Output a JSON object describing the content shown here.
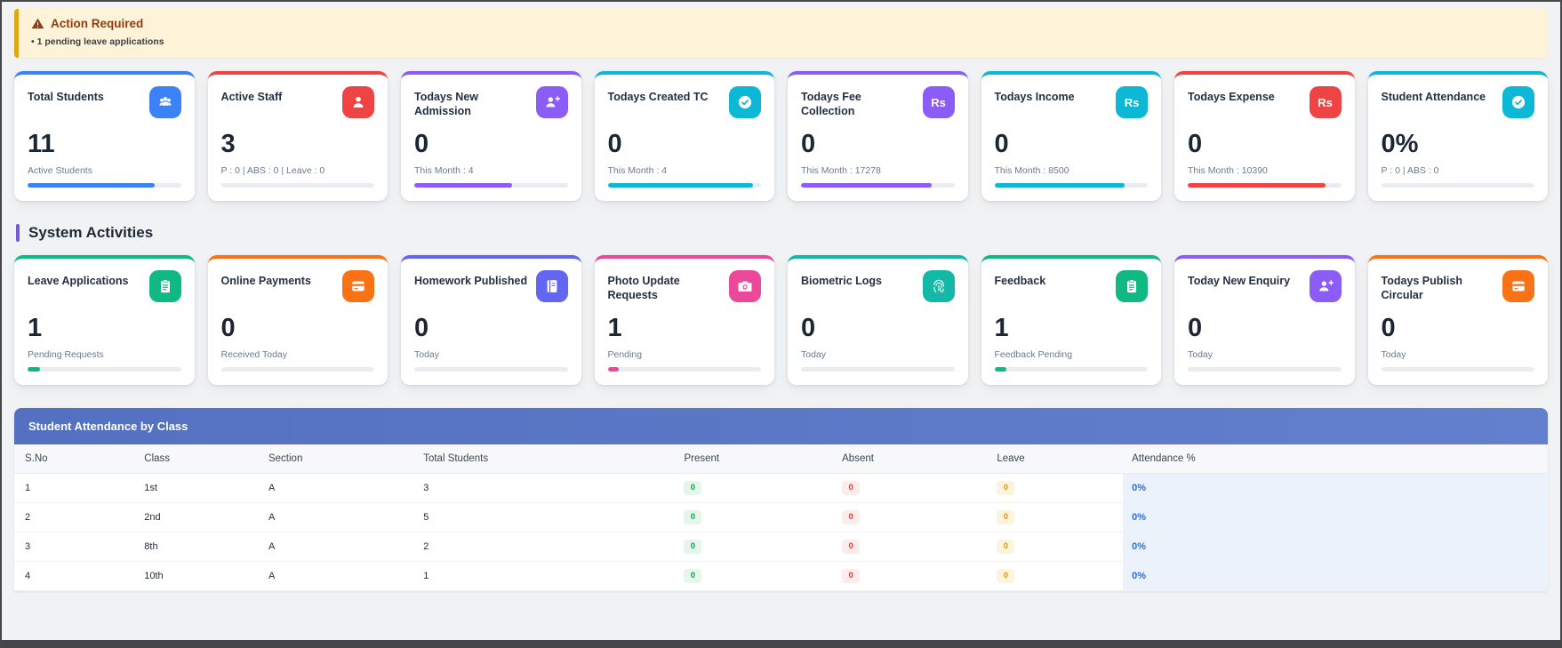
{
  "alert": {
    "title": "Action Required",
    "items": [
      "• 1 pending leave applications"
    ]
  },
  "sections": {
    "system_activities": "System Activities"
  },
  "icons": {
    "rupee_label": "Rs"
  },
  "colors": {
    "alert_bg": "#fcf3d8",
    "alert_border": "#dfa714",
    "alert_title": "#8d3d12",
    "section_bar": "#7857d6",
    "table_header_from": "#5470c1",
    "table_header_to": "#6280cd",
    "attendance_col_bg": "#ecf2fb",
    "attendance_text": "#2e6fd8",
    "present": "#17a34a",
    "absent": "#e23b3b",
    "leave": "#df9a12"
  },
  "stat_cards": [
    {
      "id": "total-students",
      "title": "Total Students",
      "icon": "users-icon",
      "value": "11",
      "subtitle": "Active Students",
      "accent": "#3b82f6",
      "progress": 83
    },
    {
      "id": "active-staff",
      "title": "Active Staff",
      "icon": "user-icon",
      "value": "3",
      "subtitle": "P : 0 | ABS : 0 | Leave : 0",
      "accent": "#ef4444",
      "progress": 0
    },
    {
      "id": "todays-new-admission",
      "title": "Todays New Admission",
      "icon": "user-plus-icon",
      "value": "0",
      "subtitle": "This Month : 4",
      "accent": "#8b5cf6",
      "progress": 64
    },
    {
      "id": "todays-created-tc",
      "title": "Todays Created TC",
      "icon": "check-icon",
      "value": "0",
      "subtitle": "This Month : 4",
      "accent": "#0db8d6",
      "progress": 95
    },
    {
      "id": "todays-fee-collection",
      "title": "Todays Fee Collection",
      "icon": "rupee-icon",
      "value": "0",
      "subtitle": "This Month : 17278",
      "accent": "#8b5cf6",
      "progress": 85
    },
    {
      "id": "todays-income",
      "title": "Todays Income",
      "icon": "rupee-icon",
      "value": "0",
      "subtitle": "This Month : 8500",
      "accent": "#0db8d6",
      "progress": 85
    },
    {
      "id": "todays-expense",
      "title": "Todays Expense",
      "icon": "rupee-icon",
      "value": "0",
      "subtitle": "This Month : 10390",
      "accent": "#ef4444",
      "progress": 90
    },
    {
      "id": "student-attendance",
      "title": "Student Attendance",
      "icon": "check-icon",
      "value": "0%",
      "subtitle": "P : 0 | ABS : 0",
      "accent": "#0db8d6",
      "progress": 0
    }
  ],
  "activity_cards": [
    {
      "id": "leave-applications",
      "title": "Leave Applications",
      "icon": "clipboard-icon",
      "value": "1",
      "subtitle": "Pending Requests",
      "accent": "#10b981",
      "progress": 8
    },
    {
      "id": "online-payments",
      "title": "Online Payments",
      "icon": "credit-card-icon",
      "value": "0",
      "subtitle": "Received Today",
      "accent": "#f97316",
      "progress": 0
    },
    {
      "id": "homework-published",
      "title": "Homework Published",
      "icon": "book-icon",
      "value": "0",
      "subtitle": "Today",
      "accent": "#6366f1",
      "progress": 0
    },
    {
      "id": "photo-update-requests",
      "title": "Photo Update Requests",
      "icon": "camera-icon",
      "value": "1",
      "subtitle": "Pending",
      "accent": "#ec4899",
      "progress": 7
    },
    {
      "id": "biometric-logs",
      "title": "Biometric Logs",
      "icon": "fingerprint-icon",
      "value": "0",
      "subtitle": "Today",
      "accent": "#14b8a6",
      "progress": 0
    },
    {
      "id": "feedback",
      "title": "Feedback",
      "icon": "clipboard-icon",
      "value": "1",
      "subtitle": "Feedback Pending",
      "accent": "#10b981",
      "progress": 8
    },
    {
      "id": "today-new-enquiry",
      "title": "Today New Enquiry",
      "icon": "user-plus-icon",
      "value": "0",
      "subtitle": "Today",
      "accent": "#8b5cf6",
      "progress": 0
    },
    {
      "id": "todays-publish-circular",
      "title": "Todays Publish Circular",
      "icon": "credit-card-icon",
      "value": "0",
      "subtitle": "Today",
      "accent": "#f97316",
      "progress": 0
    }
  ],
  "table": {
    "title": "Student Attendance by Class",
    "columns": [
      "S.No",
      "Class",
      "Section",
      "Total Students",
      "Present",
      "Absent",
      "Leave",
      "Attendance %"
    ],
    "rows": [
      [
        "1",
        "1st",
        "A",
        "3",
        "0",
        "0",
        "0",
        "0%"
      ],
      [
        "2",
        "2nd",
        "A",
        "5",
        "0",
        "0",
        "0",
        "0%"
      ],
      [
        "3",
        "8th",
        "A",
        "2",
        "0",
        "0",
        "0",
        "0%"
      ],
      [
        "4",
        "10th",
        "A",
        "1",
        "0",
        "0",
        "0",
        "0%"
      ]
    ]
  }
}
